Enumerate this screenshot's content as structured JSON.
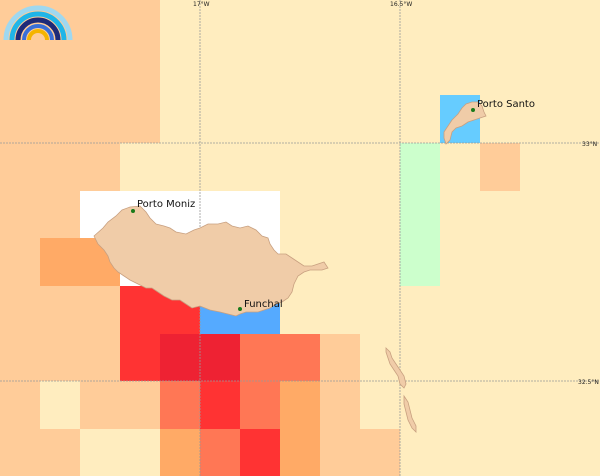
{
  "grid_labels": {
    "lon_17": "17°W",
    "lon_16_5": "16.5°W",
    "lat_33": "33°N",
    "lat_32_5": "32.5°N"
  },
  "places": {
    "porto_moniz": "Porto Moniz",
    "funchal": "Funchal",
    "porto_santo": "Porto Santo"
  },
  "colors": {
    "sea_default": "#ffedbf",
    "light_orange": "#ffcc99",
    "orange": "#ffaa66",
    "coral": "#ff7755",
    "red": "#ff3333",
    "dark_red": "#ee2233",
    "blue": "#55aaff",
    "light_blue": "#66ccff",
    "light_green": "#ccffcc",
    "no_data": "#ffffff",
    "land": "#f0cca8",
    "coast": "#c8a080",
    "grid": "#999999"
  },
  "logo": {
    "icon": "rainbow-arcs-logo-icon"
  }
}
